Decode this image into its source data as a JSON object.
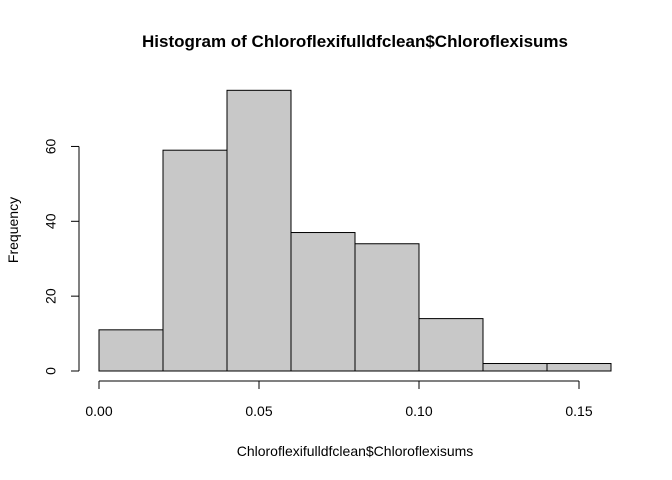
{
  "chart_data": {
    "type": "bar",
    "title": "Histogram of Chloroflexifulldfclean$Chloroflexisums",
    "xlabel": "Chloroflexifulldfclean$Chloroflexisums",
    "ylabel": "Frequency",
    "bins": [
      {
        "start": 0.0,
        "end": 0.02,
        "value": 11
      },
      {
        "start": 0.02,
        "end": 0.04,
        "value": 59
      },
      {
        "start": 0.04,
        "end": 0.06,
        "value": 75
      },
      {
        "start": 0.06,
        "end": 0.08,
        "value": 37
      },
      {
        "start": 0.08,
        "end": 0.1,
        "value": 34
      },
      {
        "start": 0.1,
        "end": 0.12,
        "value": 14
      },
      {
        "start": 0.12,
        "end": 0.14,
        "value": 2
      },
      {
        "start": 0.14,
        "end": 0.16,
        "value": 2
      }
    ],
    "xticks": [
      0.0,
      0.05,
      0.1,
      0.15
    ],
    "xtick_labels": [
      "0.00",
      "0.05",
      "0.10",
      "0.15"
    ],
    "yticks": [
      0,
      20,
      40,
      60
    ],
    "ytick_labels": [
      "0",
      "20",
      "40",
      "60"
    ],
    "xlim": [
      0.0,
      0.16
    ],
    "ylim": [
      0,
      80
    ],
    "grid": false,
    "colors": {
      "bar_fill": "#c8c8c8",
      "bar_stroke": "#000000"
    }
  }
}
